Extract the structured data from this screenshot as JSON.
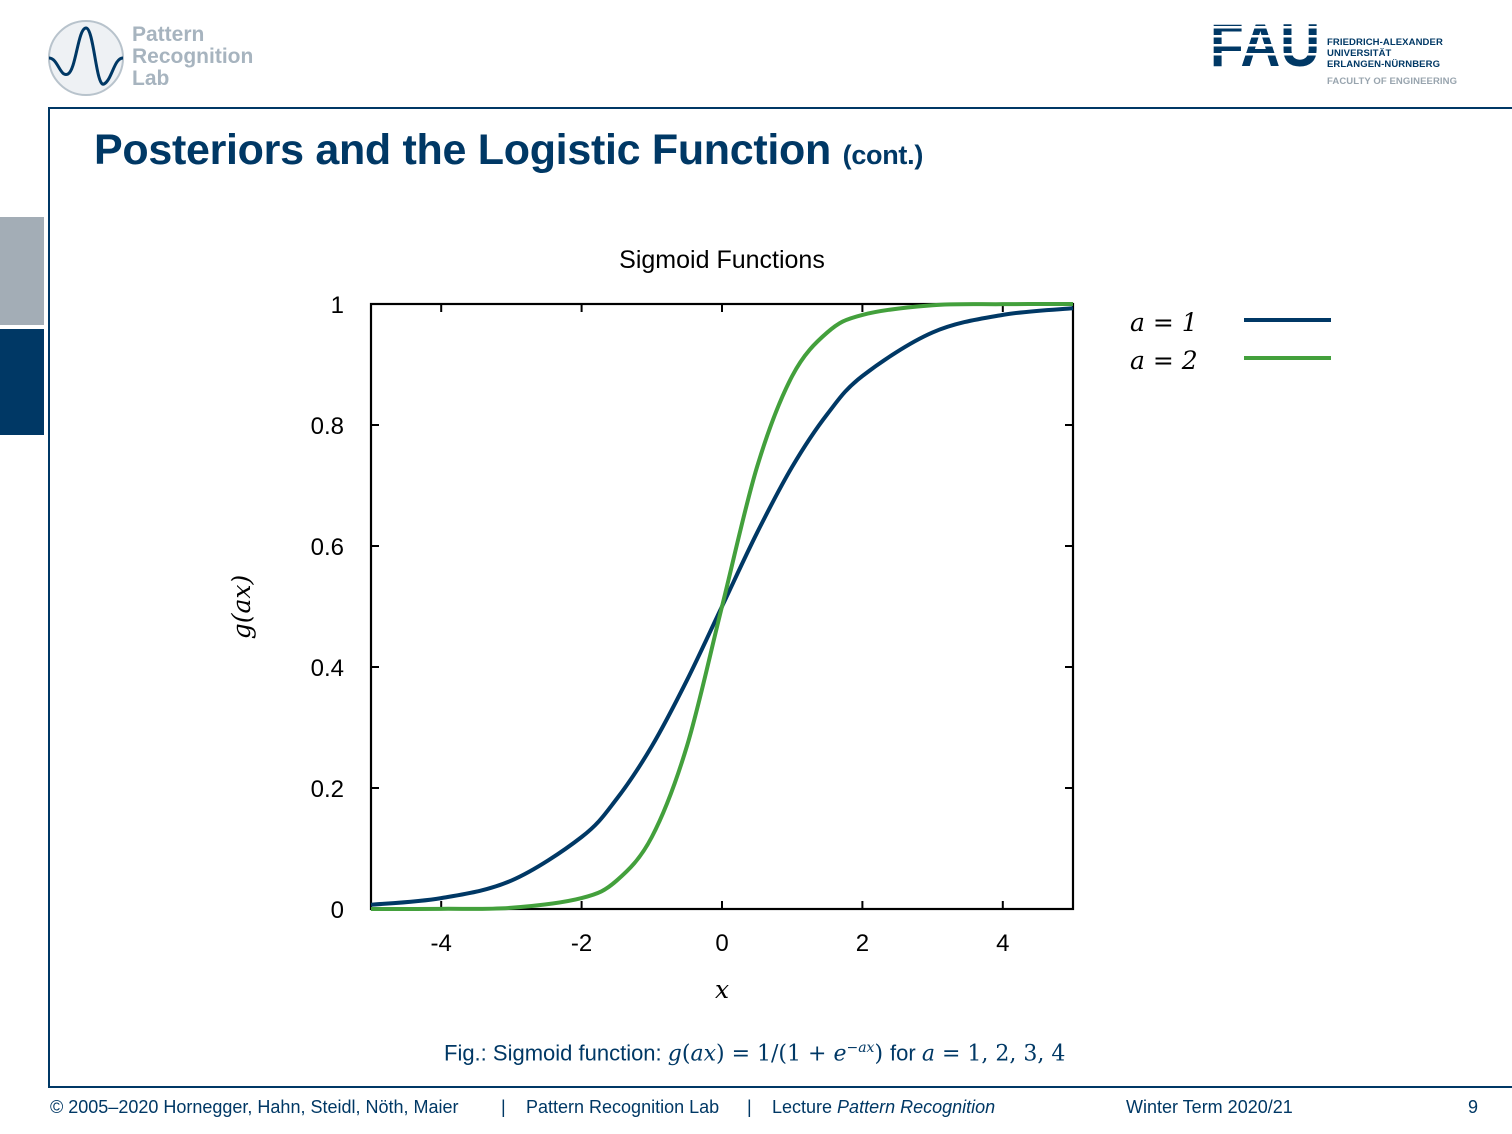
{
  "header": {
    "lab_logo": {
      "lines": [
        "Pattern",
        "Recognition",
        "Lab"
      ],
      "icon": "wave-circle-icon"
    },
    "university_logo": {
      "mark": "FAU",
      "lines": [
        "FRIEDRICH-ALEXANDER",
        "UNIVERSITÄT",
        "ERLANGEN-NÜRNBERG"
      ],
      "faculty": "FACULTY OF ENGINEERING"
    }
  },
  "slide": {
    "title": "Posteriors and the Logistic Function",
    "title_suffix": "(cont.)",
    "caption": {
      "prefix": "Fig.: Sigmoid function: ",
      "formula_a": "g",
      "formula_b": "ax",
      "formula_c": " = 1/(1 + ",
      "formula_d": "e",
      "formula_exp": "−ax",
      "formula_e": ") ",
      "for_text": "for ",
      "var": "a",
      "values": " = 1, 2, 3, 4"
    }
  },
  "chart_data": {
    "type": "line",
    "title": "Sigmoid Functions",
    "xlabel": "x",
    "ylabel": "g(ax)",
    "xlim": [
      -5,
      5
    ],
    "ylim": [
      0,
      1
    ],
    "xticks": [
      "-4",
      "-2",
      "0",
      "2",
      "4"
    ],
    "xtick_values": [
      -4,
      -2,
      0,
      2,
      4
    ],
    "yticks": [
      "0",
      "0.2",
      "0.4",
      "0.6",
      "0.8",
      "1"
    ],
    "ytick_values": [
      0,
      0.2,
      0.4,
      0.6,
      0.8,
      1
    ],
    "grid": false,
    "legend_position": "outside-right",
    "x": [
      -5,
      -4,
      -3,
      -2,
      -1.5,
      -1,
      -0.5,
      0,
      0.5,
      1,
      1.5,
      2,
      3,
      4,
      5
    ],
    "series": [
      {
        "name": "a = 1",
        "color": "#003865",
        "values": [
          0.007,
          0.018,
          0.047,
          0.119,
          0.182,
          0.269,
          0.378,
          0.5,
          0.622,
          0.731,
          0.818,
          0.881,
          0.953,
          0.982,
          0.993
        ]
      },
      {
        "name": "a = 2",
        "color": "#43a03c",
        "values": [
          0.0,
          0.0003,
          0.002,
          0.018,
          0.047,
          0.119,
          0.269,
          0.5,
          0.731,
          0.881,
          0.953,
          0.982,
          0.998,
          0.9997,
          1.0
        ]
      }
    ]
  },
  "footer": {
    "copyright": "© 2005–2020 Hornegger, Hahn, Steidl, Nöth, Maier",
    "sep": "|",
    "lab": "Pattern Recognition Lab",
    "lecture_prefix": "Lecture ",
    "lecture_name": "Pattern Recognition",
    "term": "Winter Term 2020/21",
    "page": "9"
  }
}
